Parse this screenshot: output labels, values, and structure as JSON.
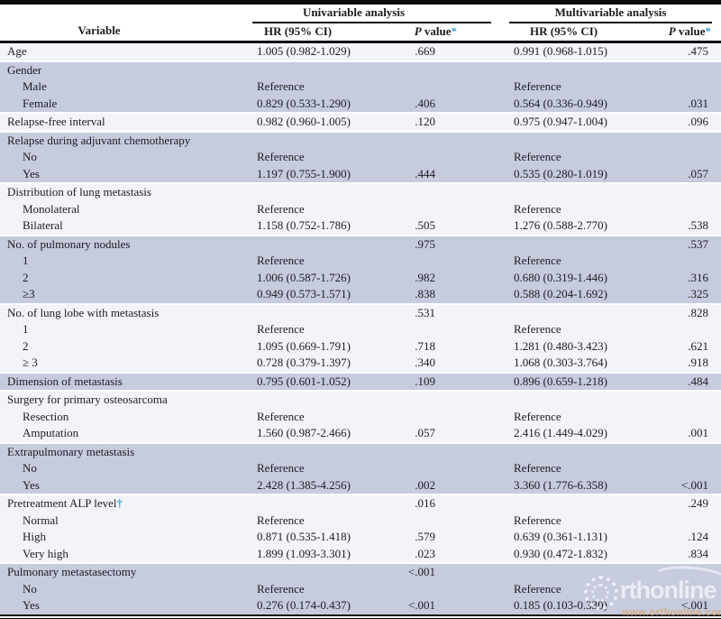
{
  "header": {
    "variable_label": "Variable",
    "group1_label": "Univariable analysis",
    "group2_label": "Multivariable analysis",
    "hr_label": "HR (95% CI)",
    "p_italic": "P",
    "p_rest": " value",
    "p_marker": "*"
  },
  "colors": {
    "shaded_row": "#c6cbde",
    "light_row": "#f3f4f9",
    "rule_black": "#0c0c0c",
    "footnote_marker_blue": "#3fa3d6"
  },
  "table": {
    "sections": [
      {
        "bg": "light",
        "rows": [
          {
            "label": "Age",
            "hr1": "1.005 (0.982-1.029)",
            "p1": ".669",
            "hr2": "0.991 (0.968-1.015)",
            "p2": ".475"
          }
        ]
      },
      {
        "bg": "shaded",
        "rows": [
          {
            "label": "Gender"
          },
          {
            "label": "Male",
            "indent": true,
            "hr1": "Reference",
            "hr2": "Reference"
          },
          {
            "label": "Female",
            "indent": true,
            "hr1": "0.829 (0.533-1.290)",
            "p1": ".406",
            "hr2": "0.564 (0.336-0.949)",
            "p2": ".031"
          }
        ]
      },
      {
        "bg": "light",
        "rows": [
          {
            "label": "Relapse-free interval",
            "hr1": "0.982 (0.960-1.005)",
            "p1": ".120",
            "hr2": "0.975 (0.947-1.004)",
            "p2": ".096"
          }
        ]
      },
      {
        "bg": "shaded",
        "rows": [
          {
            "label": "Relapse during adjuvant chemotherapy"
          },
          {
            "label": "No",
            "indent": true,
            "hr1": "Reference",
            "hr2": "Reference"
          },
          {
            "label": "Yes",
            "indent": true,
            "hr1": "1.197 (0.755-1.900)",
            "p1": ".444",
            "hr2": "0.535 (0.280-1.019)",
            "p2": ".057"
          }
        ]
      },
      {
        "bg": "light",
        "rows": [
          {
            "label": "Distribution of lung metastasis"
          },
          {
            "label": "Monolateral",
            "indent": true,
            "hr1": "Reference",
            "hr2": "Reference"
          },
          {
            "label": "Bilateral",
            "indent": true,
            "hr1": "1.158 (0.752-1.786)",
            "p1": ".505",
            "hr2": "1.276 (0.588-2.770)",
            "p2": ".538"
          }
        ]
      },
      {
        "bg": "shaded",
        "rows": [
          {
            "label": "No. of pulmonary nodules",
            "p1": ".975",
            "p2": ".537"
          },
          {
            "label": "1",
            "indent": true,
            "hr1": "Reference",
            "hr2": "Reference"
          },
          {
            "label": "2",
            "indent": true,
            "hr1": "1.006 (0.587-1.726)",
            "p1": ".982",
            "hr2": "0.680 (0.319-1.446)",
            "p2": ".316"
          },
          {
            "label": "≥3",
            "indent": true,
            "hr1": "0.949 (0.573-1.571)",
            "p1": ".838",
            "hr2": "0.588 (0.204-1.692)",
            "p2": ".325"
          }
        ]
      },
      {
        "bg": "light",
        "rows": [
          {
            "label": "No. of lung lobe with metastasis",
            "p1": ".531",
            "p2": ".828"
          },
          {
            "label": "1",
            "indent": true,
            "hr1": "Reference",
            "hr2": "Reference"
          },
          {
            "label": "2",
            "indent": true,
            "hr1": "1.095 (0.669-1.791)",
            "p1": ".718",
            "hr2": "1.281 (0.480-3.423)",
            "p2": ".621"
          },
          {
            "label": "≥ 3",
            "indent": true,
            "hr1": "0.728 (0.379-1.397)",
            "p1": ".340",
            "hr2": "1.068 (0.303-3.764)",
            "p2": ".918"
          }
        ]
      },
      {
        "bg": "shaded",
        "rows": [
          {
            "label": "Dimension of metastasis",
            "hr1": "0.795 (0.601-1.052)",
            "p1": ".109",
            "hr2": "0.896 (0.659-1.218)",
            "p2": ".484"
          }
        ]
      },
      {
        "bg": "light",
        "rows": [
          {
            "label": "Surgery for primary osteosarcoma"
          },
          {
            "label": "Resection",
            "indent": true,
            "hr1": "Reference",
            "hr2": "Reference"
          },
          {
            "label": "Amputation",
            "indent": true,
            "hr1": "1.560 (0.987-2.466)",
            "p1": ".057",
            "hr2": "2.416 (1.449-4.029)",
            "p2": ".001"
          }
        ]
      },
      {
        "bg": "shaded",
        "rows": [
          {
            "label": "Extrapulmonary metastasis"
          },
          {
            "label": "No",
            "indent": true,
            "hr1": "Reference",
            "hr2": "Reference"
          },
          {
            "label": "Yes",
            "indent": true,
            "hr1": "2.428 (1.385-4.256)",
            "p1": ".002",
            "hr2": "3.360 (1.776-6.358)",
            "p2": "<.001"
          }
        ]
      },
      {
        "bg": "light",
        "rows": [
          {
            "label": "Pretreatment ALP level",
            "marker": "†",
            "p1": ".016",
            "p2": ".249"
          },
          {
            "label": "Normal",
            "indent": true,
            "hr1": "Reference",
            "hr2": "Reference"
          },
          {
            "label": "High",
            "indent": true,
            "hr1": "0.871 (0.535-1.418)",
            "p1": ".579",
            "hr2": "0.639 (0.361-1.131)",
            "p2": ".124"
          },
          {
            "label": "Very high",
            "indent": true,
            "hr1": "1.899 (1.093-3.301)",
            "p1": ".023",
            "hr2": "0.930 (0.472-1.832)",
            "p2": ".834"
          }
        ]
      },
      {
        "bg": "shaded",
        "rows": [
          {
            "label": "Pulmonary metastasectomy",
            "p1": "<.001"
          },
          {
            "label": "No",
            "indent": true,
            "hr1": "Reference",
            "hr2": "Reference"
          },
          {
            "label": "Yes",
            "indent": true,
            "hr1": "0.276 (0.174-0.437)",
            "p1": "<.001",
            "hr2": "0.185 (0.103-0.330)",
            "p2": "<.001"
          }
        ]
      }
    ]
  },
  "watermark": {
    "logo_text": "rthonline",
    "url_text": "www.orthonline.com.c"
  }
}
